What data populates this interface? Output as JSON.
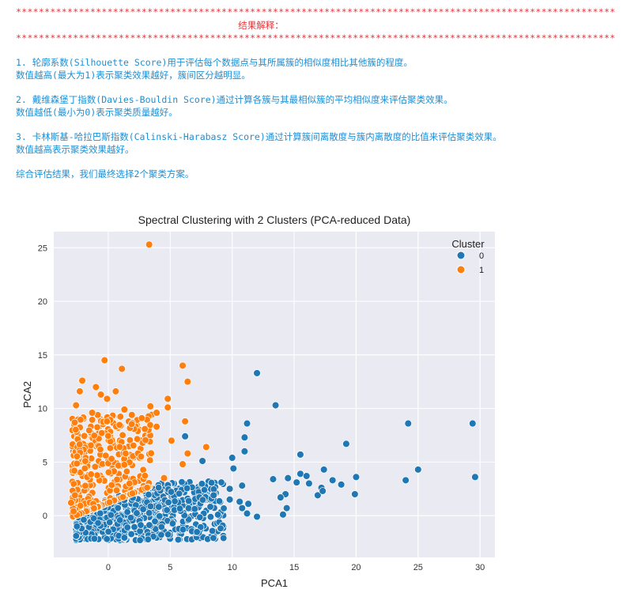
{
  "log": {
    "stars": "*********************************************************************************************************",
    "title": "结果解释：",
    "p1_l1": "1. 轮廓系数(Silhouette Score)用于评估每个数据点与其所属簇的相似度相比其他簇的程度。",
    "p1_l2": "数值越高(最大为1)表示聚类效果越好，簇间区分越明显。",
    "p2_l1": "2. 戴维森堡丁指数(Davies-Bouldin Score)通过计算各簇与其最相似簇的平均相似度来评估聚类效果。",
    "p2_l2": "数值越低(最小为0)表示聚类质量越好。",
    "p3_l1": "3. 卡林斯基-哈拉巴斯指数(Calinski-Harabasz Score)通过计算簇间离散度与簇内离散度的比值来评估聚类效果。",
    "p3_l2": "数值越高表示聚类效果越好。",
    "conclusion": "综合评估结果，我们最终选择2个聚类方案。"
  },
  "colors": {
    "stars": "#e8343a",
    "text": "#1c8fd6",
    "plot_bg": "#eaeaf2",
    "cluster0": "#1f77b4",
    "cluster1": "#ff7f0e"
  },
  "chart_data": {
    "type": "scatter",
    "title": "Spectral Clustering with 2 Clusters (PCA-reduced Data)",
    "xlabel": "PCA1",
    "ylabel": "PCA2",
    "xlim": [
      -4.4,
      31.2
    ],
    "ylim": [
      -3.9,
      26.5
    ],
    "xticks": [
      0,
      5,
      10,
      15,
      20,
      25,
      30
    ],
    "yticks": [
      0,
      5,
      10,
      15,
      20,
      25
    ],
    "grid": true,
    "legend": {
      "title": "Cluster",
      "placement": "top-right"
    },
    "series": [
      {
        "name": "0",
        "color": "#1f77b4",
        "points": [
          [
            12.0,
            13.3
          ],
          [
            13.5,
            10.3
          ],
          [
            11.2,
            8.6
          ],
          [
            24.2,
            8.6
          ],
          [
            29.4,
            8.6
          ],
          [
            6.2,
            7.4
          ],
          [
            11.0,
            7.3
          ],
          [
            19.2,
            6.7
          ],
          [
            11.0,
            6.0
          ],
          [
            15.5,
            5.7
          ],
          [
            10.0,
            5.4
          ],
          [
            7.6,
            5.1
          ],
          [
            17.4,
            4.3
          ],
          [
            25.0,
            4.3
          ],
          [
            10.1,
            4.4
          ],
          [
            15.5,
            3.9
          ],
          [
            14.5,
            3.5
          ],
          [
            13.3,
            3.4
          ],
          [
            16.0,
            3.7
          ],
          [
            18.1,
            3.3
          ],
          [
            24.0,
            3.3
          ],
          [
            20.0,
            3.6
          ],
          [
            29.6,
            3.6
          ],
          [
            15.2,
            3.1
          ],
          [
            18.8,
            2.9
          ],
          [
            16.2,
            3.0
          ],
          [
            17.2,
            2.6
          ],
          [
            9.8,
            2.5
          ],
          [
            10.8,
            2.8
          ],
          [
            14.3,
            2.0
          ],
          [
            16.9,
            1.9
          ],
          [
            13.9,
            1.7
          ],
          [
            17.3,
            2.3
          ],
          [
            19.9,
            2.0
          ],
          [
            14.4,
            0.7
          ],
          [
            12.0,
            -0.1
          ],
          [
            14.1,
            0.1
          ],
          [
            11.2,
            0.2
          ],
          [
            10.8,
            0.7
          ],
          [
            11.3,
            1.1
          ],
          [
            10.6,
            1.3
          ],
          [
            9.8,
            1.5
          ],
          [
            8.5,
            1.9
          ]
        ],
        "dense_region": [
          [
            -2.8,
            10.0
          ],
          [
            -2.6,
            3.2
          ],
          "bulk of points near origin"
        ]
      },
      {
        "name": "1",
        "color": "#ff7f0e",
        "points": [
          [
            3.3,
            25.3
          ],
          [
            -0.3,
            14.5
          ],
          [
            1.1,
            13.7
          ],
          [
            6.0,
            14.0
          ],
          [
            -2.1,
            12.6
          ],
          [
            -1.0,
            12.0
          ],
          [
            6.4,
            12.5
          ],
          [
            -2.3,
            11.6
          ],
          [
            -0.6,
            11.3
          ],
          [
            0.6,
            11.6
          ],
          [
            -0.1,
            10.9
          ],
          [
            4.8,
            10.9
          ],
          [
            3.4,
            10.2
          ],
          [
            -2.6,
            10.3
          ],
          [
            4.8,
            10.1
          ],
          [
            1.3,
            9.9
          ],
          [
            -1.3,
            9.6
          ],
          [
            1.9,
            9.4
          ],
          [
            3.9,
            9.6
          ],
          [
            6.2,
            8.8
          ],
          [
            3.9,
            8.3
          ],
          [
            7.9,
            6.4
          ],
          [
            5.1,
            7.0
          ],
          [
            6.4,
            5.8
          ],
          [
            6.0,
            4.8
          ],
          [
            4.5,
            3.5
          ],
          [
            -3.0,
            1.2
          ],
          [
            -2.8,
            0.4
          ]
        ],
        "dense_region": [
          [
            -2.9,
            4.0
          ],
          [
            -1.2,
            9.0
          ],
          "bulk of points upper-left"
        ]
      }
    ]
  }
}
